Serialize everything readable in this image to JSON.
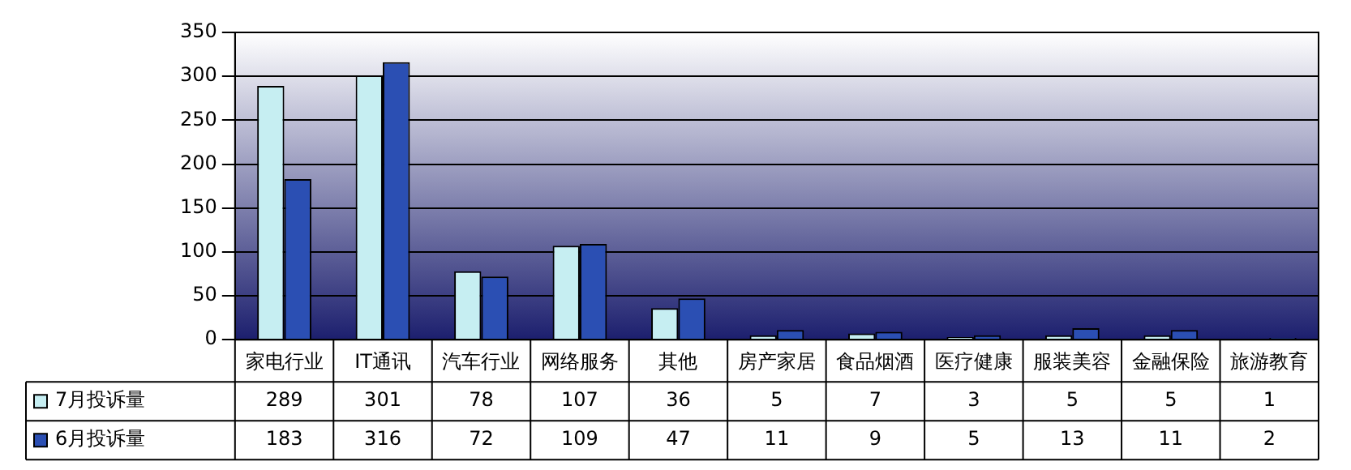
{
  "chart_data": {
    "type": "bar",
    "categories": [
      "家电行业",
      "IT通讯",
      "汽车行业",
      "网络服务",
      "其他",
      "房产家居",
      "食品烟酒",
      "医疗健康",
      "服装美容",
      "金融保险",
      "旅游教育"
    ],
    "series": [
      {
        "name": "7月投诉量",
        "color": "#c6eef2",
        "values": [
          289,
          301,
          78,
          107,
          36,
          5,
          7,
          3,
          5,
          5,
          1
        ]
      },
      {
        "name": "6月投诉量",
        "color": "#2b4fb3",
        "values": [
          183,
          316,
          72,
          109,
          47,
          11,
          9,
          5,
          13,
          11,
          2
        ]
      }
    ],
    "ylim": [
      0,
      350
    ],
    "yticks": [
      0,
      50,
      100,
      150,
      200,
      250,
      300,
      350
    ],
    "grid": "y",
    "legend": "bottom",
    "data_labels": true
  }
}
